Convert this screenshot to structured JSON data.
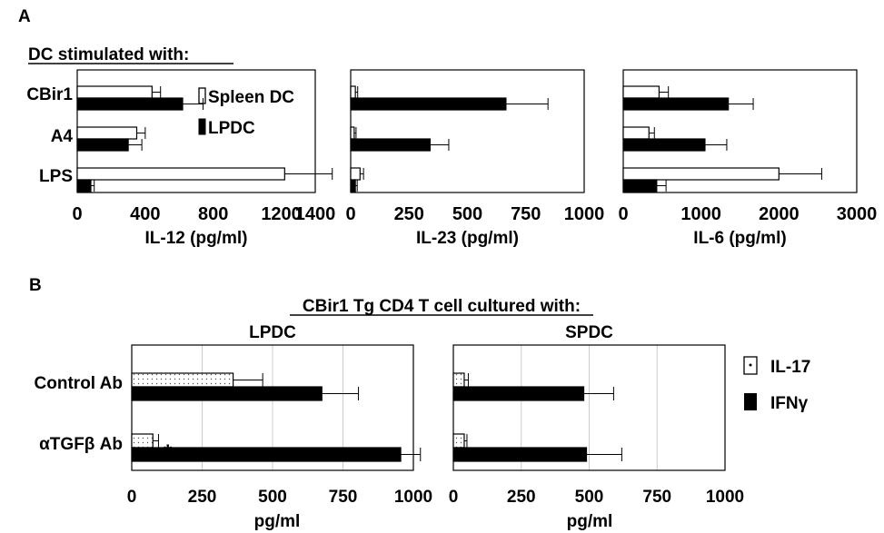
{
  "panel_labels": {
    "a": "A",
    "b": "B"
  },
  "panel_a": {
    "heading": "DC stimulated with:",
    "row_labels": [
      "CBir1",
      "A4",
      "LPS"
    ],
    "legend": [
      {
        "label": "Spleen DC",
        "style": "open"
      },
      {
        "label": "LPDC",
        "style": "solid"
      }
    ]
  },
  "panel_b": {
    "heading": "CBir1 Tg CD4 T cell cultured with:",
    "row_labels": [
      "Control Ab",
      "αTGFβ Ab"
    ],
    "significance_marker": "*",
    "legend": [
      {
        "label": "IL-17",
        "style": "dotted"
      },
      {
        "label": "IFNγ",
        "style": "solid"
      }
    ]
  },
  "chart_data": [
    {
      "type": "bar",
      "orientation": "horizontal",
      "categories": [
        "CBir1",
        "A4",
        "LPS"
      ],
      "xlabel": "IL-12 (pg/ml)",
      "xlim": [
        0,
        1400
      ],
      "xticks": [
        0,
        400,
        800,
        1200,
        1400
      ],
      "xtick_labels": [
        "0",
        "400",
        "800",
        "1200",
        "1400"
      ],
      "series": [
        {
          "name": "Spleen DC",
          "style": "open",
          "values": [
            440,
            350,
            1220
          ],
          "errors": [
            50,
            50,
            280
          ]
        },
        {
          "name": "LPDC",
          "style": "solid",
          "values": [
            620,
            300,
            80
          ],
          "errors": [
            120,
            80,
            20
          ]
        }
      ]
    },
    {
      "type": "bar",
      "orientation": "horizontal",
      "categories": [
        "CBir1",
        "A4",
        "LPS"
      ],
      "xlabel": "IL-23 (pg/ml)",
      "xlim": [
        0,
        1000
      ],
      "xticks": [
        0,
        250,
        500,
        750,
        1000
      ],
      "xtick_labels": [
        "0",
        "250",
        "500",
        "750",
        "1000"
      ],
      "series": [
        {
          "name": "Spleen DC",
          "style": "open",
          "values": [
            20,
            15,
            40
          ],
          "errors": [
            10,
            8,
            15
          ]
        },
        {
          "name": "LPDC",
          "style": "solid",
          "values": [
            665,
            340,
            20
          ],
          "errors": [
            180,
            80,
            8
          ]
        }
      ]
    },
    {
      "type": "bar",
      "orientation": "horizontal",
      "categories": [
        "CBir1",
        "A4",
        "LPS"
      ],
      "xlabel": "IL-6 (pg/ml)",
      "xlim": [
        0,
        3000
      ],
      "xticks": [
        0,
        1000,
        2000,
        3000
      ],
      "xtick_labels": [
        "0",
        "1000",
        "2000",
        "3000"
      ],
      "series": [
        {
          "name": "Spleen DC",
          "style": "open",
          "values": [
            460,
            330,
            2000
          ],
          "errors": [
            120,
            70,
            550
          ]
        },
        {
          "name": "LPDC",
          "style": "solid",
          "values": [
            1350,
            1050,
            430
          ],
          "errors": [
            320,
            280,
            120
          ]
        }
      ]
    },
    {
      "type": "bar",
      "orientation": "horizontal",
      "title": "LPDC",
      "categories": [
        "Control Ab",
        "αTGFβ Ab"
      ],
      "xlabel": "pg/ml",
      "xlim": [
        0,
        1000
      ],
      "xticks": [
        0,
        250,
        500,
        750,
        1000
      ],
      "xtick_labels": [
        "0",
        "250",
        "500",
        "750",
        "1000"
      ],
      "grid": true,
      "series": [
        {
          "name": "IL-17",
          "style": "dotted",
          "values": [
            360,
            75
          ],
          "errors": [
            105,
            20
          ]
        },
        {
          "name": "IFNγ",
          "style": "solid",
          "values": [
            675,
            955
          ],
          "errors": [
            130,
            70
          ]
        }
      ]
    },
    {
      "type": "bar",
      "orientation": "horizontal",
      "title": "SPDC",
      "categories": [
        "Control Ab",
        "αTGFβ Ab"
      ],
      "xlabel": "pg/ml",
      "xlim": [
        0,
        1000
      ],
      "xticks": [
        0,
        250,
        500,
        750,
        1000
      ],
      "xtick_labels": [
        "0",
        "250",
        "500",
        "750",
        "1000"
      ],
      "grid": true,
      "series": [
        {
          "name": "IL-17",
          "style": "dotted",
          "values": [
            40,
            40
          ],
          "errors": [
            15,
            10
          ]
        },
        {
          "name": "IFNγ",
          "style": "solid",
          "values": [
            480,
            490
          ],
          "errors": [
            110,
            130
          ]
        }
      ]
    }
  ]
}
